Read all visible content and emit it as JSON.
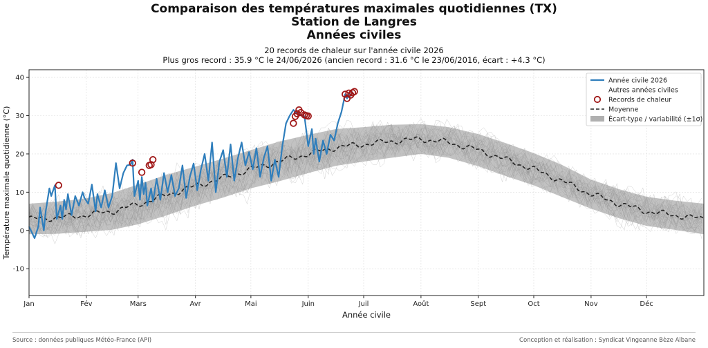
{
  "chart_data": {
    "type": "line",
    "title": "Comparaison des températures maximales quotidiennes (TX)",
    "title2": "Station de Langres",
    "title3": "Années civiles",
    "subtitle": "20 records de chaleur sur l'année civile 2026",
    "subtitle2": "Plus gros record : 35.9 °C le 24/06/2026 (ancien record : 31.6 °C le 23/06/2016, écart : +4.3 °C)",
    "xlabel": "Année civile",
    "ylabel": "Température maximale quotidienne (°C)",
    "xlim": [
      1,
      366
    ],
    "ylim": [
      -17,
      42
    ],
    "grid": true,
    "legend_position": "top-right",
    "x_ticks": [
      {
        "day": 1,
        "label": "Jan"
      },
      {
        "day": 32,
        "label": "Fév"
      },
      {
        "day": 60,
        "label": "Mars"
      },
      {
        "day": 91,
        "label": "Avr"
      },
      {
        "day": 121,
        "label": "Mai"
      },
      {
        "day": 152,
        "label": "Juin"
      },
      {
        "day": 182,
        "label": "Juil"
      },
      {
        "day": 213,
        "label": "Août"
      },
      {
        "day": 244,
        "label": "Sept"
      },
      {
        "day": 274,
        "label": "Oct"
      },
      {
        "day": 305,
        "label": "Nov"
      },
      {
        "day": 335,
        "label": "Déc"
      }
    ],
    "y_ticks": [
      -10,
      0,
      10,
      20,
      30,
      40
    ],
    "legend": {
      "current": "Année civile 2026",
      "others": "Autres années civiles",
      "records": "Records de chaleur",
      "mean": "Moyenne",
      "std": "Écart-type / variabilité (±1σ)"
    },
    "colors": {
      "current": "#2f7ebc",
      "others": "#9a9a9a",
      "mean": "#222222",
      "std": "#8f8f8f",
      "record": "#a01818"
    },
    "mean_series": {
      "x": [
        1,
        15,
        30,
        46,
        60,
        75,
        91,
        106,
        121,
        136,
        152,
        167,
        182,
        197,
        213,
        228,
        244,
        259,
        274,
        289,
        305,
        320,
        335,
        350,
        366
      ],
      "y": [
        3.0,
        3.3,
        3.9,
        5.0,
        6.8,
        9.2,
        11.6,
        13.7,
        16.0,
        18.0,
        20.0,
        21.7,
        22.5,
        23.3,
        23.9,
        23.0,
        21.0,
        18.5,
        16.0,
        13.0,
        9.5,
        7.0,
        5.0,
        4.0,
        3.0
      ]
    },
    "std_band": {
      "x": [
        1,
        15,
        30,
        46,
        60,
        75,
        91,
        106,
        121,
        136,
        152,
        167,
        182,
        197,
        213,
        228,
        244,
        259,
        274,
        289,
        305,
        320,
        335,
        350,
        366
      ],
      "upper": [
        7.0,
        7.5,
        8.2,
        9.8,
        12.0,
        14.5,
        16.7,
        18.8,
        21.0,
        23.2,
        25.0,
        26.5,
        27.0,
        27.6,
        27.8,
        27.0,
        25.2,
        22.8,
        20.2,
        17.2,
        13.3,
        10.8,
        8.8,
        7.8,
        7.0
      ],
      "lower": [
        -1.0,
        -0.9,
        -0.4,
        0.2,
        1.6,
        3.9,
        6.5,
        8.6,
        11.0,
        12.8,
        15.0,
        16.9,
        18.0,
        19.0,
        20.0,
        19.0,
        16.8,
        14.2,
        11.8,
        8.8,
        5.7,
        3.2,
        1.2,
        0.2,
        -1.0
      ]
    },
    "current_series": {
      "name": "Année civile 2026",
      "x": [
        1,
        2,
        4,
        6,
        7,
        9,
        10,
        12,
        13,
        15,
        16,
        18,
        19,
        20,
        21,
        22,
        24,
        26,
        28,
        30,
        31,
        33,
        35,
        37,
        38,
        40,
        42,
        44,
        46,
        48,
        50,
        52,
        54,
        56,
        57,
        58,
        60,
        61,
        62,
        63,
        64,
        65,
        67,
        68,
        70,
        72,
        74,
        76,
        78,
        80,
        82,
        84,
        86,
        88,
        90,
        92,
        94,
        96,
        98,
        100,
        102,
        104,
        106,
        108,
        110,
        112,
        114,
        116,
        118,
        120,
        122,
        124,
        126,
        128,
        130,
        132,
        134,
        136,
        138,
        140,
        142,
        144,
        146,
        148,
        150,
        152,
        154,
        155,
        156,
        158,
        160,
        162,
        164,
        166,
        168,
        170,
        172,
        173,
        174,
        175,
        176
      ],
      "y": [
        1.0,
        0.0,
        -2.0,
        1.0,
        6.0,
        0.0,
        5.0,
        11.0,
        9.0,
        11.8,
        3.0,
        6.5,
        3.0,
        8.0,
        5.5,
        9.5,
        4.0,
        9.0,
        6.5,
        10.0,
        8.5,
        7.0,
        12.0,
        5.0,
        9.5,
        6.0,
        10.5,
        6.0,
        9.0,
        17.6,
        11.0,
        15.0,
        17.0,
        17.2,
        18.5,
        9.0,
        13.0,
        8.0,
        14.0,
        9.5,
        12.5,
        6.5,
        11.0,
        7.5,
        13.5,
        8.0,
        15.0,
        10.0,
        14.5,
        9.0,
        11.0,
        17.0,
        8.5,
        14.0,
        17.5,
        10.5,
        16.0,
        20.0,
        13.0,
        23.0,
        10.0,
        18.0,
        21.0,
        14.0,
        22.5,
        13.0,
        19.0,
        23.0,
        17.0,
        20.5,
        16.0,
        21.5,
        14.0,
        19.0,
        22.0,
        13.0,
        18.5,
        14.0,
        22.0,
        28.0,
        30.0,
        31.5,
        30.5,
        30.2,
        29.8,
        22.0,
        26.5,
        20.0,
        24.0,
        18.0,
        23.5,
        20.0,
        25.0,
        23.5,
        28.0,
        31.0,
        35.6,
        34.5,
        35.9,
        35.2,
        36.3
      ]
    },
    "records": {
      "x": [
        17,
        57,
        62,
        66,
        67,
        68,
        144,
        145,
        146,
        147,
        148,
        150,
        151,
        152,
        172,
        173,
        174,
        175,
        176,
        177
      ],
      "y": [
        11.8,
        17.6,
        15.2,
        17.0,
        17.2,
        18.5,
        28.0,
        29.8,
        30.5,
        31.5,
        30.8,
        30.2,
        30.0,
        29.9,
        35.6,
        34.5,
        35.9,
        35.4,
        36.0,
        36.3
      ]
    },
    "others_count": 30
  },
  "footer": {
    "source": "Source : données publiques Météo-France (API)",
    "credit": "Conception et réalisation : Syndicat Vingeanne Bèze Albane"
  }
}
